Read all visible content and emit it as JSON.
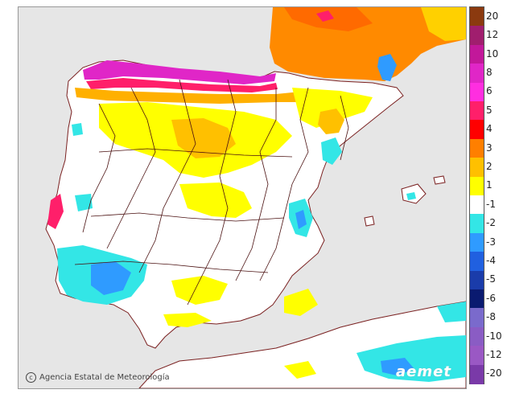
{
  "credit": {
    "icon": "copyright-icon",
    "text": "Agencia Estatal de Meteorología"
  },
  "logo": {
    "text": "aemet"
  },
  "legend": {
    "items": [
      {
        "label": "20",
        "color": "#8b3a0f"
      },
      {
        "label": "12",
        "color": "#a01e6e"
      },
      {
        "label": "10",
        "color": "#c2189a"
      },
      {
        "label": "8",
        "color": "#e026c7"
      },
      {
        "label": "6",
        "color": "#ff2ee0"
      },
      {
        "label": "5",
        "color": "#ff1f6a"
      },
      {
        "label": "4",
        "color": "#ff0000"
      },
      {
        "label": "3",
        "color": "#ff7f00"
      },
      {
        "label": "2",
        "color": "#ffc000"
      },
      {
        "label": "1",
        "color": "#ffff00"
      },
      {
        "label": "-1",
        "color": "#ffffff"
      },
      {
        "label": "-2",
        "color": "#33e6e6"
      },
      {
        "label": "-3",
        "color": "#2f9bff"
      },
      {
        "label": "-4",
        "color": "#2060e0"
      },
      {
        "label": "-5",
        "color": "#1a3caa"
      },
      {
        "label": "-6",
        "color": "#0a1a70"
      },
      {
        "label": "-8",
        "color": "#7a6acc"
      },
      {
        "label": "-10",
        "color": "#8a5cc4"
      },
      {
        "label": "-12",
        "color": "#9a58c4"
      },
      {
        "label": "-20",
        "color": "#7a3aa8"
      }
    ]
  },
  "colors": {
    "sea": "#e6e6e6",
    "land": "#ffffff",
    "coast": "#7a2020",
    "borders": "#4a1010"
  }
}
